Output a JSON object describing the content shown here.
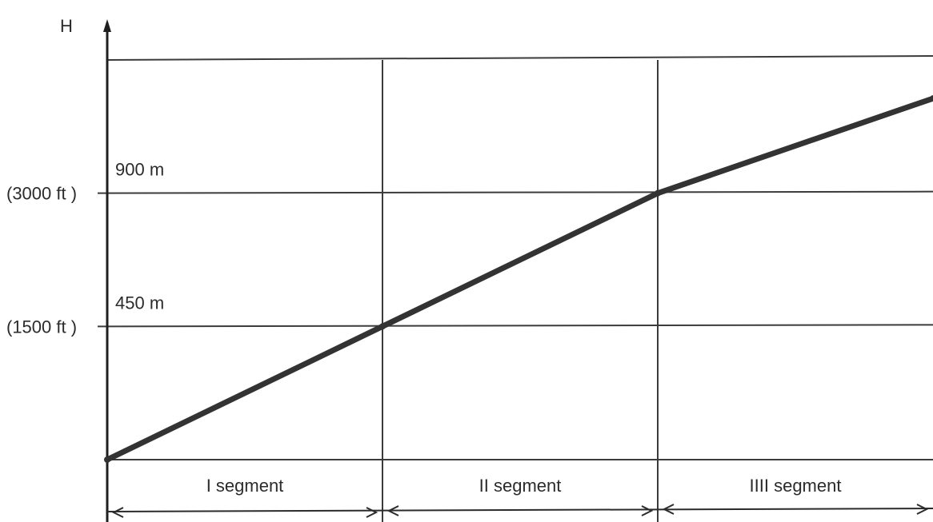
{
  "chart_data": {
    "type": "line",
    "ylabel": "H",
    "y_ticks": [
      {
        "value": 450,
        "label": "450 m",
        "alt_label": "(1500 ft )"
      },
      {
        "value": 900,
        "label": "900 m",
        "alt_label": "(3000 ft )"
      }
    ],
    "x_segments": [
      {
        "label": "I segment"
      },
      {
        "label": "II segment"
      },
      {
        "label": "IIII segment"
      }
    ],
    "xlim": [
      0,
      3
    ],
    "ylim": [
      0,
      1350
    ],
    "series": [
      {
        "x": [
          0,
          1,
          2,
          3
        ],
        "y": [
          0,
          450,
          900,
          1220
        ]
      }
    ],
    "grid": true
  }
}
